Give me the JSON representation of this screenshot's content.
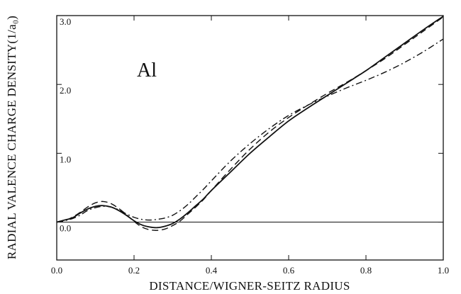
{
  "chart_data": {
    "type": "line",
    "xlabel": "DISTANCE/WIGNER-SEITZ RADIUS",
    "ylabel": "RADIAL VALENCE CHARGE DENSITY(1/a₀)",
    "annotation": "Al",
    "xlim": [
      0.0,
      1.0
    ],
    "ylim": [
      -0.55,
      3.0
    ],
    "x_ticks": [
      0.0,
      0.2,
      0.4,
      0.6,
      0.8,
      1.0
    ],
    "x_tick_labels": [
      "0.0",
      "0.2",
      "0.4",
      "0.6",
      "0.8",
      "1.0"
    ],
    "y_ticks": [
      0.0,
      1.0,
      2.0,
      3.0
    ],
    "y_tick_labels": [
      "0.0",
      "1.0",
      "2.0",
      "3.0"
    ],
    "zero_line": true,
    "grid": false,
    "series": [
      {
        "style": "solid",
        "x": [
          0.0,
          0.02,
          0.04,
          0.06,
          0.08,
          0.1,
          0.12,
          0.14,
          0.16,
          0.18,
          0.2,
          0.22,
          0.24,
          0.26,
          0.28,
          0.3,
          0.32,
          0.34,
          0.36,
          0.38,
          0.4,
          0.45,
          0.5,
          0.55,
          0.6,
          0.65,
          0.7,
          0.75,
          0.8,
          0.85,
          0.9,
          0.95,
          1.0
        ],
        "y": [
          0.0,
          0.03,
          0.06,
          0.13,
          0.19,
          0.23,
          0.24,
          0.22,
          0.17,
          0.1,
          0.02,
          -0.04,
          -0.07,
          -0.08,
          -0.06,
          -0.02,
          0.05,
          0.14,
          0.24,
          0.34,
          0.46,
          0.73,
          1.0,
          1.24,
          1.47,
          1.66,
          1.84,
          2.02,
          2.2,
          2.4,
          2.6,
          2.8,
          2.99
        ]
      },
      {
        "style": "dashed",
        "x": [
          0.0,
          0.02,
          0.04,
          0.06,
          0.08,
          0.1,
          0.12,
          0.14,
          0.16,
          0.18,
          0.2,
          0.22,
          0.24,
          0.26,
          0.28,
          0.3,
          0.32,
          0.34,
          0.36,
          0.38,
          0.4,
          0.45,
          0.5,
          0.55,
          0.6,
          0.65,
          0.7,
          0.75,
          0.8,
          0.85,
          0.9,
          0.95,
          1.0
        ],
        "y": [
          0.0,
          0.02,
          0.07,
          0.14,
          0.22,
          0.28,
          0.3,
          0.27,
          0.2,
          0.11,
          0.01,
          -0.07,
          -0.11,
          -0.12,
          -0.1,
          -0.05,
          0.02,
          0.12,
          0.22,
          0.33,
          0.46,
          0.77,
          1.06,
          1.31,
          1.52,
          1.7,
          1.87,
          2.03,
          2.2,
          2.38,
          2.58,
          2.78,
          2.98
        ]
      },
      {
        "style": "dash-dot",
        "x": [
          0.0,
          0.02,
          0.04,
          0.06,
          0.08,
          0.1,
          0.12,
          0.14,
          0.16,
          0.18,
          0.2,
          0.22,
          0.24,
          0.26,
          0.28,
          0.3,
          0.32,
          0.34,
          0.36,
          0.38,
          0.4,
          0.45,
          0.5,
          0.55,
          0.6,
          0.65,
          0.7,
          0.75,
          0.8,
          0.85,
          0.9,
          0.95,
          1.0
        ],
        "y": [
          0.0,
          0.02,
          0.05,
          0.1,
          0.17,
          0.21,
          0.23,
          0.22,
          0.18,
          0.12,
          0.07,
          0.04,
          0.03,
          0.04,
          0.06,
          0.1,
          0.17,
          0.26,
          0.37,
          0.48,
          0.6,
          0.89,
          1.14,
          1.36,
          1.55,
          1.7,
          1.83,
          1.95,
          2.06,
          2.18,
          2.32,
          2.48,
          2.66
        ]
      }
    ]
  }
}
